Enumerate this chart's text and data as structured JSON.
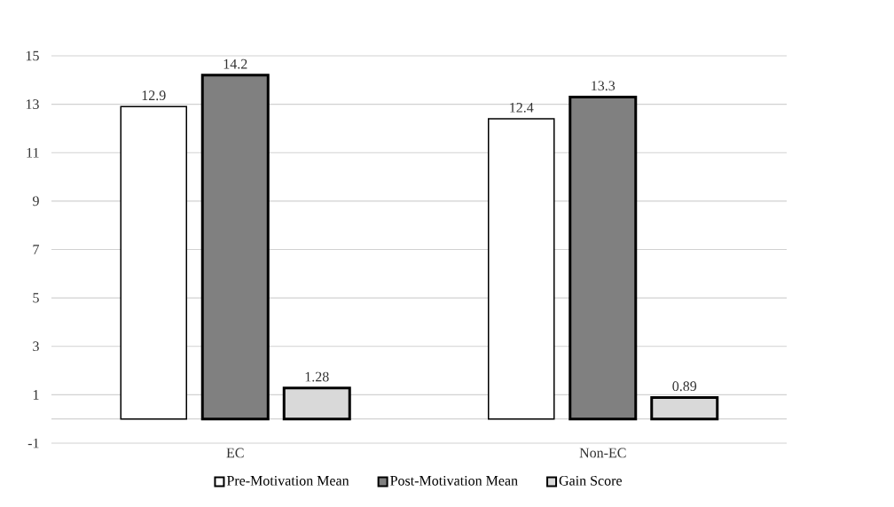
{
  "chart_data": {
    "type": "bar",
    "categories": [
      "EC",
      "Non-EC"
    ],
    "series": [
      {
        "name": "Pre-Motivation Mean",
        "color": "#ffffff",
        "values": [
          12.9,
          12.4
        ]
      },
      {
        "name": "Post-Motivation Mean",
        "color": "#808080",
        "values": [
          14.2,
          13.3
        ]
      },
      {
        "name": "Gain Score",
        "color": "#d9d9d9",
        "values": [
          1.28,
          0.89
        ]
      }
    ],
    "ylim": [
      -1,
      15
    ],
    "yticks": [
      -1,
      1,
      3,
      5,
      7,
      9,
      11,
      13,
      15
    ],
    "grid": "y",
    "legend": "bottom",
    "data_labels": true
  }
}
